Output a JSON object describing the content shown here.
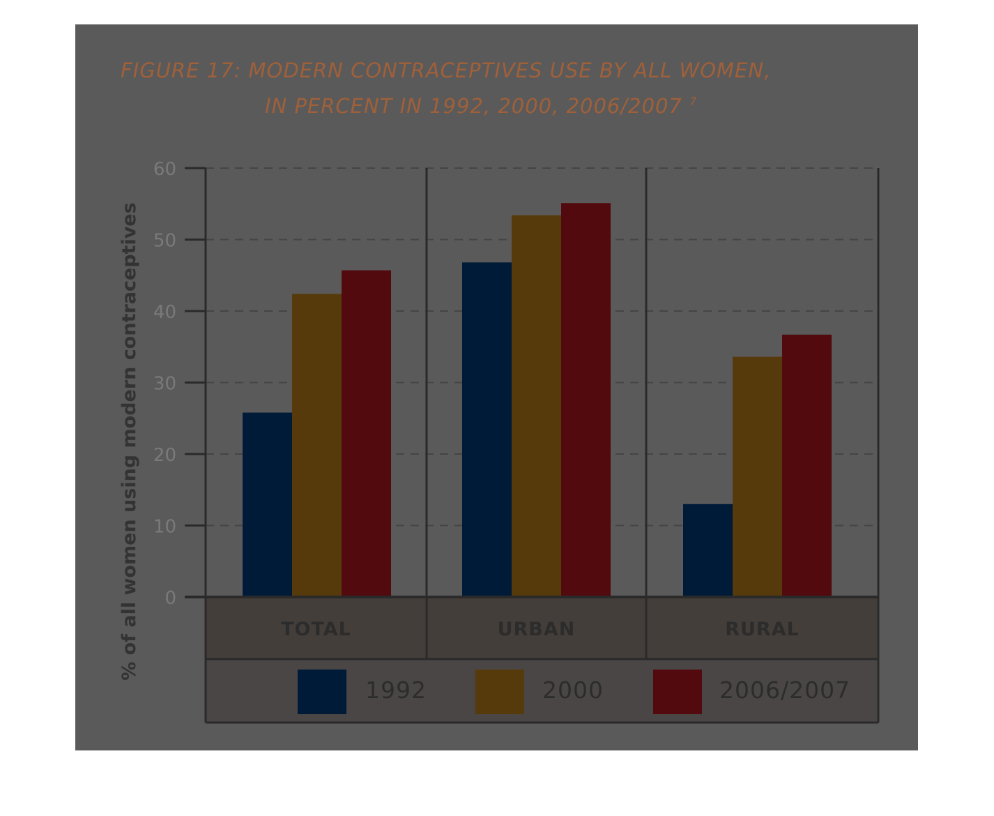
{
  "chart_data": {
    "type": "bar",
    "title": "FIGURE 17: MODERN CONTRACEPTIVES USE BY ALL WOMEN,",
    "subtitle": "IN PERCENT IN 1992, 2000, 2006/2007",
    "title_footnote": "7",
    "xlabel": "",
    "ylabel": "% of all women using modern contraceptives",
    "ylim": [
      0,
      60
    ],
    "yticks": [
      "0",
      "10",
      "20",
      "30",
      "40",
      "50",
      "60"
    ],
    "grid": true,
    "legend_position": "bottom",
    "categories": [
      "TOTAL",
      "URBAN",
      "RURAL"
    ],
    "series": [
      {
        "name": "1992",
        "color": "#001b38",
        "values": [
          25.8,
          46.8,
          13
        ]
      },
      {
        "name": "2000",
        "color": "#563a0b",
        "values": [
          42.4,
          53.4,
          33.6
        ]
      },
      {
        "name": "2006/2007",
        "color": "#520a0e",
        "values": [
          45.7,
          55.1,
          36.7
        ]
      }
    ],
    "colors": {
      "background": "#5a5a5a",
      "category_band": "#443e3a",
      "legend_band": "#4a4645",
      "title": "#a0603a"
    }
  }
}
